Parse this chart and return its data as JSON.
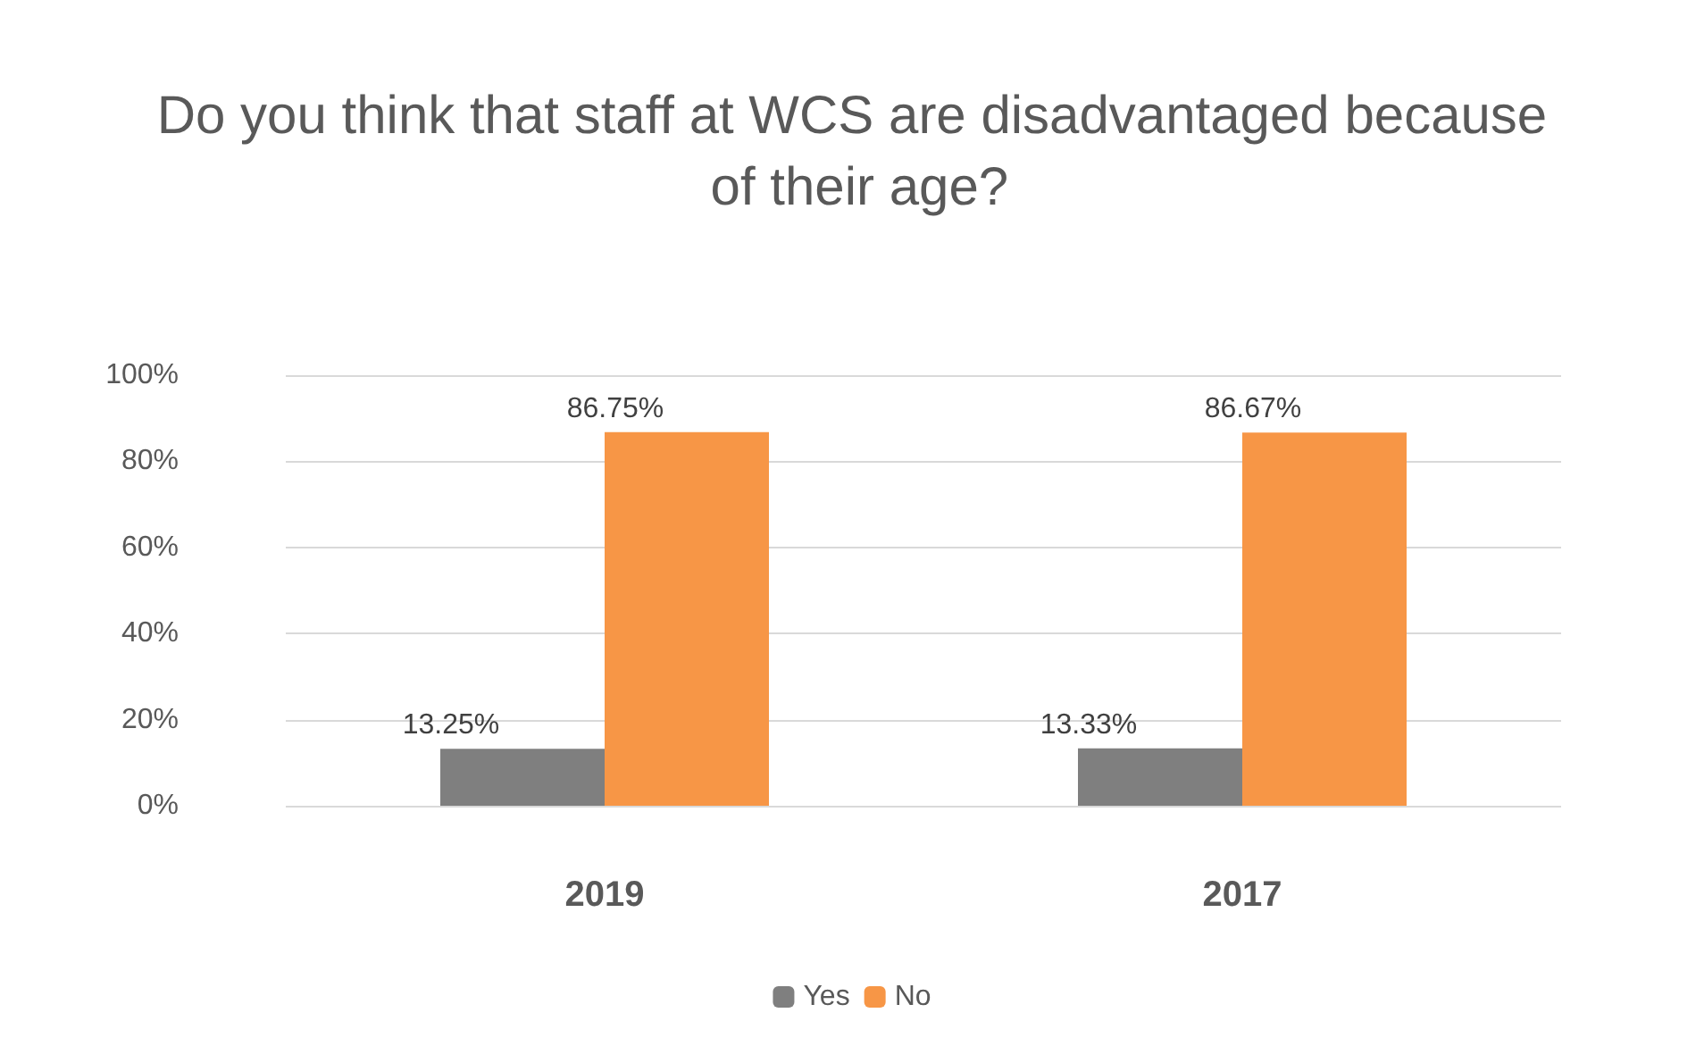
{
  "chart_data": {
    "type": "bar",
    "title": "Do you think that staff at WCS are disadvantaged because of their age?",
    "categories": [
      "2019",
      "2017"
    ],
    "series": [
      {
        "name": "Yes",
        "color": "#7f7f7f",
        "values": [
          13.25,
          13.33
        ],
        "value_labels": [
          "13.25%",
          "13.33%"
        ]
      },
      {
        "name": "No",
        "color": "#f79646",
        "values": [
          86.75,
          86.67
        ],
        "value_labels": [
          "86.75%",
          "86.67%"
        ]
      }
    ],
    "ylim": [
      0,
      100
    ],
    "yticks": [
      {
        "value": 0,
        "label": "0%"
      },
      {
        "value": 20,
        "label": "20%"
      },
      {
        "value": 40,
        "label": "40%"
      },
      {
        "value": 60,
        "label": "60%"
      },
      {
        "value": 80,
        "label": "80%"
      },
      {
        "value": 100,
        "label": "100%"
      }
    ],
    "grid": "y",
    "legend": "bottom"
  }
}
